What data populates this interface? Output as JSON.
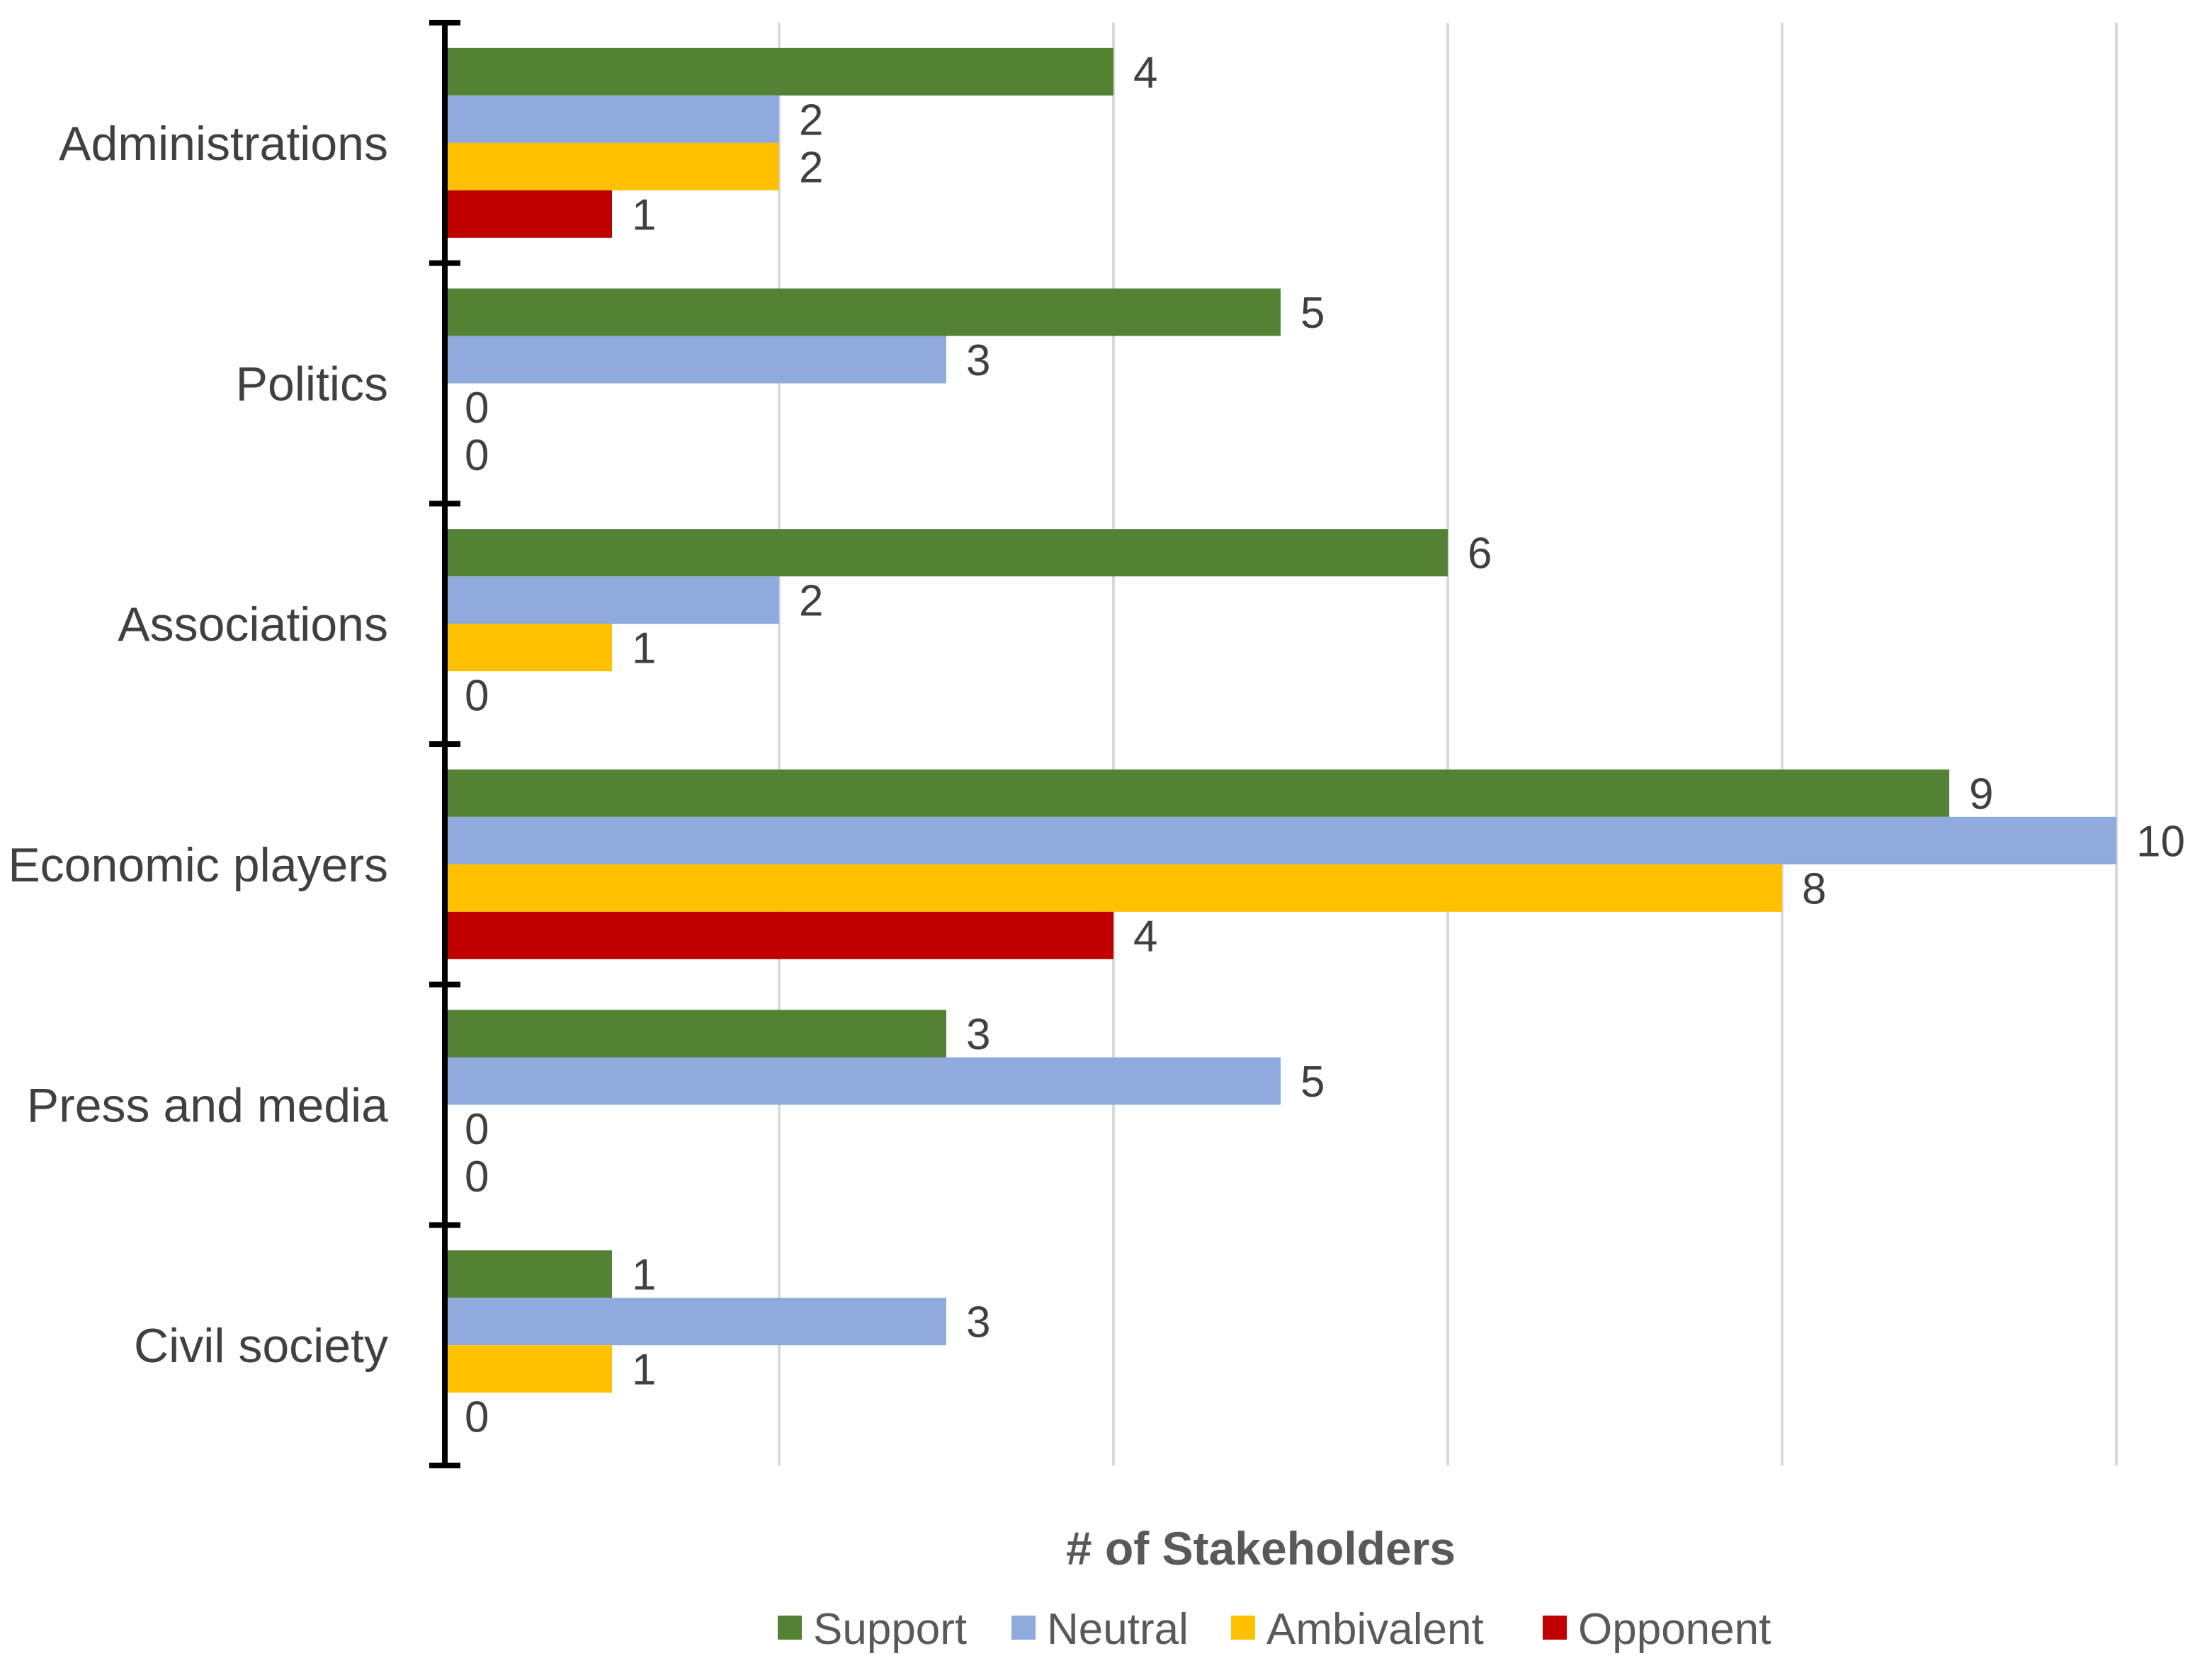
{
  "chart_data": {
    "type": "bar",
    "orientation": "horizontal",
    "title": "",
    "xlabel": "# of Stakeholders",
    "ylabel": "",
    "xlim": [
      0,
      10
    ],
    "grid": true,
    "legend_position": "bottom",
    "categories": [
      "Administrations",
      "Politics",
      "Associations",
      "Economic players",
      "Press and media",
      "Civil society"
    ],
    "series": [
      {
        "name": "Support",
        "color": "#548235",
        "values": [
          4,
          5,
          6,
          9,
          3,
          1
        ]
      },
      {
        "name": "Neutral",
        "color": "#8faadc",
        "values": [
          2,
          3,
          2,
          10,
          5,
          3
        ]
      },
      {
        "name": "Ambivalent",
        "color": "#ffc000",
        "values": [
          2,
          0,
          1,
          8,
          0,
          1
        ]
      },
      {
        "name": "Opponent",
        "color": "#c00000",
        "values": [
          1,
          0,
          0,
          4,
          0,
          0
        ]
      }
    ]
  }
}
